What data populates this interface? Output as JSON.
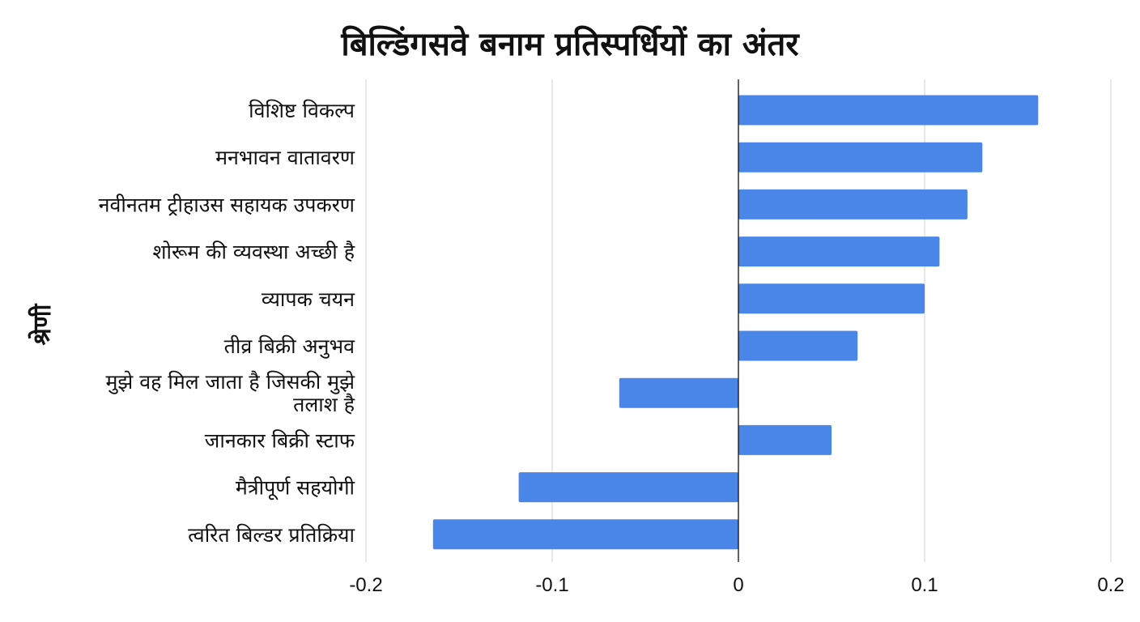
{
  "chart_data": {
    "type": "bar",
    "orientation": "horizontal",
    "title": "बिल्डिंगसवे बनाम प्रतिस्पर्धियों का अंतर",
    "xlabel": "",
    "ylabel": "श्रेणी",
    "xlim": [
      -0.2,
      0.2
    ],
    "xticks": [
      "-0.2",
      "-0.1",
      "0",
      "0.1",
      "0.2"
    ],
    "xtick_values": [
      -0.2,
      -0.1,
      0,
      0.1,
      0.2
    ],
    "grid": true,
    "legend": "none",
    "bar_color": "#4a86e8",
    "categories": [
      "विशिष्ट विकल्प",
      "मनभावन वातावरण",
      "नवीनतम ट्रीहाउस सहायक उपकरण",
      "शोरूम की व्यवस्था अच्छी है",
      "व्यापक चयन",
      "तीव्र बिक्री अनुभव",
      "मुझे वह मिल जाता है जिसकी मुझे तलाश है",
      "जानकार बिक्री स्टाफ",
      "मैत्रीपूर्ण सहयोगी",
      "त्वरित बिल्डर प्रतिक्रिया"
    ],
    "category_lines": [
      [
        "विशिष्ट विकल्प"
      ],
      [
        "मनभावन वातावरण"
      ],
      [
        "नवीनतम ट्रीहाउस सहायक उपकरण"
      ],
      [
        "शोरूम की व्यवस्था अच्छी है"
      ],
      [
        "व्यापक चयन"
      ],
      [
        "तीव्र बिक्री अनुभव"
      ],
      [
        "मुझे वह मिल जाता है जिसकी मुझे",
        "तलाश है"
      ],
      [
        "जानकार बिक्री स्टाफ"
      ],
      [
        "मैत्रीपूर्ण सहयोगी"
      ],
      [
        "त्वरित बिल्डर प्रतिक्रिया"
      ]
    ],
    "values": [
      0.161,
      0.131,
      0.123,
      0.108,
      0.1,
      0.064,
      -0.064,
      0.05,
      -0.118,
      -0.164
    ]
  }
}
